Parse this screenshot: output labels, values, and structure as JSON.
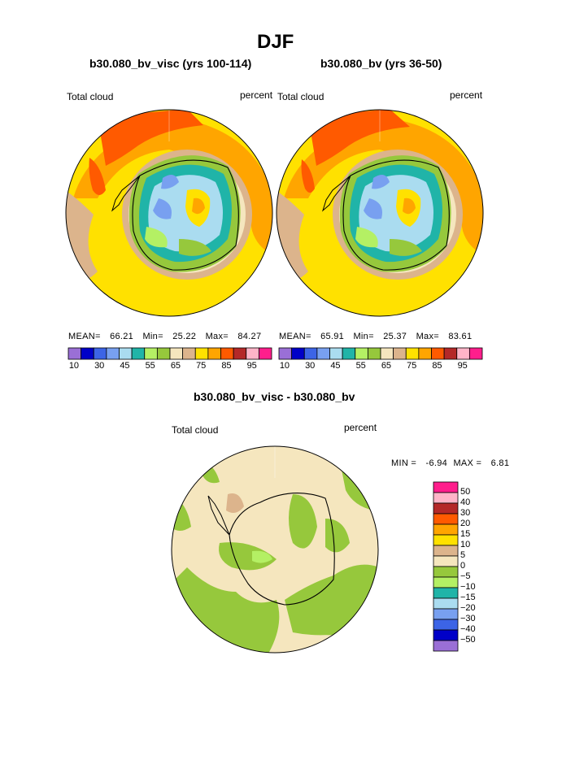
{
  "page": {
    "title": "DJF",
    "left_title": "b30.080_bv_visc (yrs 100-114)",
    "right_title": "b30.080_bv (yrs 36-50)",
    "diff_title": "b30.080_bv_visc - b30.080_bv"
  },
  "panels": [
    {
      "label_left": "Total cloud",
      "label_right": "percent",
      "stats": {
        "mean_label": "MEAN=",
        "mean": "66.21",
        "min_label": "Min=",
        "min": "25.22",
        "max_label": "Max=",
        "max": "84.27"
      }
    },
    {
      "label_left": "Total cloud",
      "label_right": "percent",
      "stats": {
        "mean_label": "MEAN=",
        "mean": "65.91",
        "min_label": "Min=",
        "min": "25.37",
        "max_label": "Max=",
        "max": "83.61"
      }
    }
  ],
  "diff_panel": {
    "label_left": "Total cloud",
    "label_right": "percent",
    "stats": {
      "min_label": "MIN =",
      "min": "-6.94",
      "max_label": "MAX =",
      "max": "6.81"
    }
  },
  "colorbar_abs": {
    "colors": [
      "#9a6fd6",
      "#0000c8",
      "#3c64e6",
      "#78a0f0",
      "#aadcf0",
      "#20b4a8",
      "#b4f064",
      "#96c83c",
      "#f5e6be",
      "#dcb48c",
      "#ffe100",
      "#ffa500",
      "#ff5a00",
      "#b42828",
      "#ffb4c8",
      "#ff1e8c"
    ],
    "tick_labels": [
      "10",
      "30",
      "45",
      "55",
      "65",
      "75",
      "85",
      "95"
    ]
  },
  "colorbar_diff": {
    "colors": [
      "#ff1e8c",
      "#ffb4c8",
      "#b42828",
      "#ff5a00",
      "#ffa500",
      "#ffe100",
      "#dcb48c",
      "#f5e6be",
      "#96c83c",
      "#b4f064",
      "#20b4a8",
      "#aadcf0",
      "#78a0f0",
      "#3c64e6",
      "#0000c8",
      "#9a6fd6"
    ],
    "tick_labels": [
      "50",
      "40",
      "30",
      "20",
      "15",
      "10",
      "5",
      "0",
      "-5",
      "-10",
      "-15",
      "-20",
      "-30",
      "-40",
      "-50"
    ]
  }
}
